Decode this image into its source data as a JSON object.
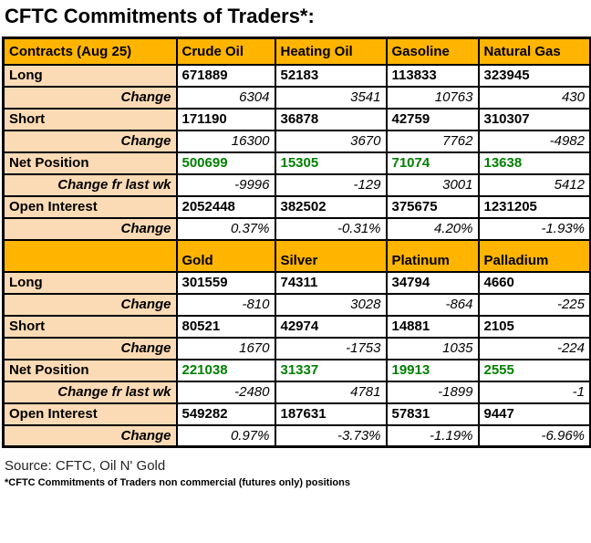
{
  "title": "CFTC Commitments of Traders*:",
  "source": "Source: CFTC, Oil N' Gold",
  "footnote": "*CFTC Commitments of Traders non commercial (futures only) positions",
  "colors": {
    "header_bg": "#FFB400",
    "label_bg": "#FBDBB5",
    "net_position_green": "#008000",
    "border": "#000000",
    "page_bg": "#FFFFFF"
  },
  "chart_data": {
    "type": "table",
    "title": "CFTC Commitments of Traders*:",
    "source": "Source: CFTC, Oil N' Gold",
    "footnote": "*CFTC Commitments of Traders non commercial (futures only) positions",
    "sections": [
      {
        "header": [
          "Contracts (Aug 25)",
          "Crude Oil",
          "Heating Oil",
          "Gasoline",
          "Natural Gas"
        ],
        "rows": [
          {
            "label": "Long",
            "type": "data",
            "values": [
              "671889",
              "52183",
              "113833",
              "323945"
            ]
          },
          {
            "label": "Change",
            "type": "change",
            "values": [
              "6304",
              "3541",
              "10763",
              "430"
            ]
          },
          {
            "label": "Short",
            "type": "data",
            "values": [
              "171190",
              "36878",
              "42759",
              "310307"
            ]
          },
          {
            "label": "Change",
            "type": "change",
            "values": [
              "16300",
              "3670",
              "7762",
              "-4982"
            ]
          },
          {
            "label": "Net Position",
            "type": "net",
            "values": [
              "500699",
              "15305",
              "71074",
              "13638"
            ]
          },
          {
            "label": "Change fr last wk",
            "type": "change",
            "values": [
              "-9996",
              "-129",
              "3001",
              "5412"
            ]
          },
          {
            "label": "Open Interest",
            "type": "data",
            "values": [
              "2052448",
              "382502",
              "375675",
              "1231205"
            ]
          },
          {
            "label": "Change",
            "type": "change",
            "values": [
              "0.37%",
              "-0.31%",
              "4.20%",
              "-1.93%"
            ]
          }
        ]
      },
      {
        "header": [
          "",
          "Gold",
          "Silver",
          "Platinum",
          "Palladium"
        ],
        "rows": [
          {
            "label": "Long",
            "type": "data",
            "values": [
              "301559",
              "74311",
              "34794",
              "4660"
            ]
          },
          {
            "label": "Change",
            "type": "change",
            "values": [
              "-810",
              "3028",
              "-864",
              "-225"
            ]
          },
          {
            "label": "Short",
            "type": "data",
            "values": [
              "80521",
              "42974",
              "14881",
              "2105"
            ]
          },
          {
            "label": "Change",
            "type": "change",
            "values": [
              "1670",
              "-1753",
              "1035",
              "-224"
            ]
          },
          {
            "label": "Net Position",
            "type": "net",
            "values": [
              "221038",
              "31337",
              "19913",
              "2555"
            ]
          },
          {
            "label": "Change fr last wk",
            "type": "change",
            "values": [
              "-2480",
              "4781",
              "-1899",
              "-1"
            ]
          },
          {
            "label": "Open Interest",
            "type": "data",
            "values": [
              "549282",
              "187631",
              "57831",
              "9447"
            ]
          },
          {
            "label": "Change",
            "type": "change",
            "values": [
              "0.97%",
              "-3.73%",
              "-1.19%",
              "-6.96%"
            ]
          }
        ]
      }
    ]
  }
}
